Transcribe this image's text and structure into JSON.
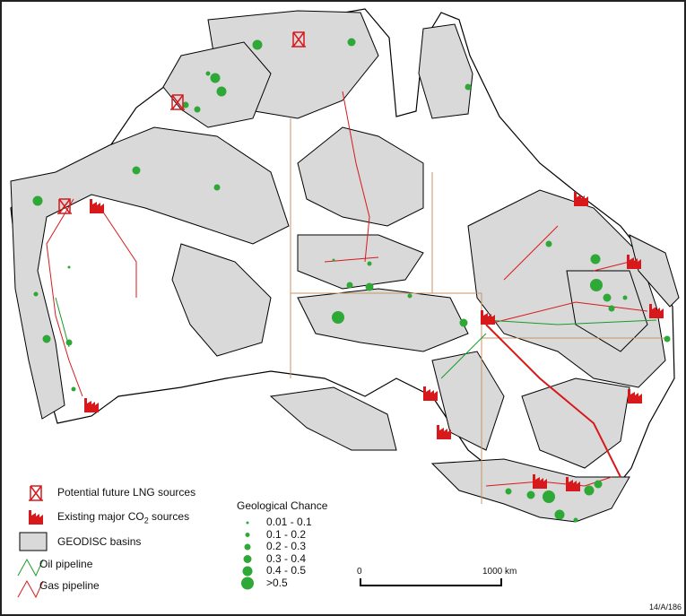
{
  "legend": {
    "lng": "Potential future LNG sources",
    "co2": "Existing major CO",
    "co2_sub": "2",
    "co2_suffix": " sources",
    "basins": "GEODISC basins",
    "oil": "Oil pipeline",
    "gas": "Gas pipeline"
  },
  "geological_chance": {
    "title": "Geological Chance",
    "classes": [
      "0.01 - 0.1",
      "0.1 - 0.2",
      "0.2 - 0.3",
      "0.3 - 0.4",
      "0.4 - 0.5",
      ">0.5"
    ]
  },
  "scale_bar": {
    "start": "0",
    "end": "1000 km"
  },
  "figure_id": "14/A/186",
  "colors": {
    "basin": "#d9d9d9",
    "dot": "#2ea836",
    "gas": "#d7191c",
    "oil": "#1a9a2a",
    "icon": "#d7191c",
    "state_border": "#c8956a"
  }
}
